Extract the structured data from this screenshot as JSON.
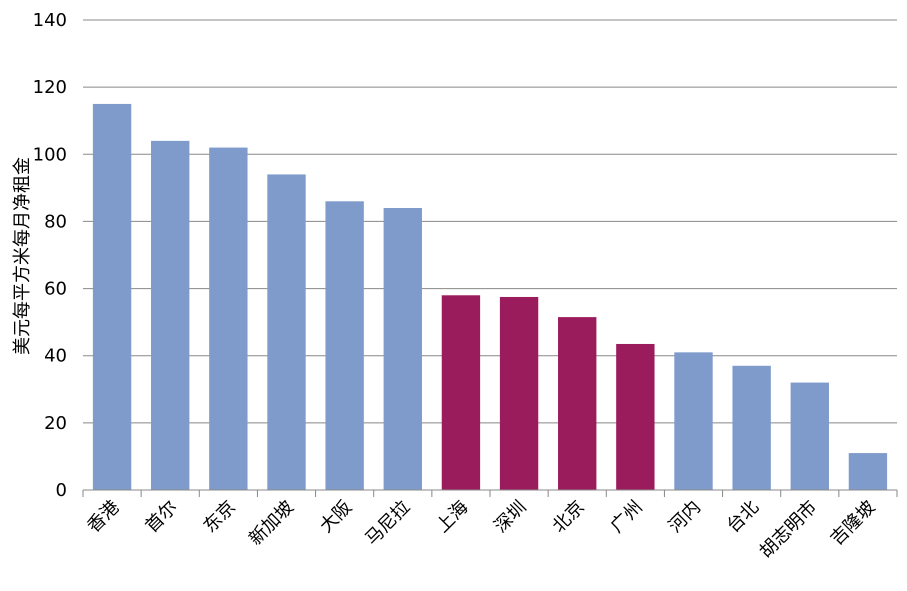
{
  "chart_data": {
    "type": "bar",
    "ylabel": "美元每平方米每月净租金",
    "ylim": [
      0,
      140
    ],
    "yticks": [
      0,
      20,
      40,
      60,
      80,
      100,
      120,
      140
    ],
    "grid": true,
    "categories": [
      "香港",
      "首尔",
      "东京",
      "新加坡",
      "大阪",
      "马尼拉",
      "上海",
      "深圳",
      "北京",
      "广州",
      "河内",
      "台北",
      "胡志明市",
      "吉隆坡"
    ],
    "values": [
      115,
      104,
      102,
      94,
      86,
      84,
      58,
      57.5,
      51.5,
      43.5,
      41,
      37,
      32,
      11
    ],
    "colors": [
      "#7f9bcb",
      "#7f9bcb",
      "#7f9bcb",
      "#7f9bcb",
      "#7f9bcb",
      "#7f9bcb",
      "#9b1c5c",
      "#9b1c5c",
      "#9b1c5c",
      "#9b1c5c",
      "#7f9bcb",
      "#7f9bcb",
      "#7f9bcb",
      "#7f9bcb"
    ]
  }
}
